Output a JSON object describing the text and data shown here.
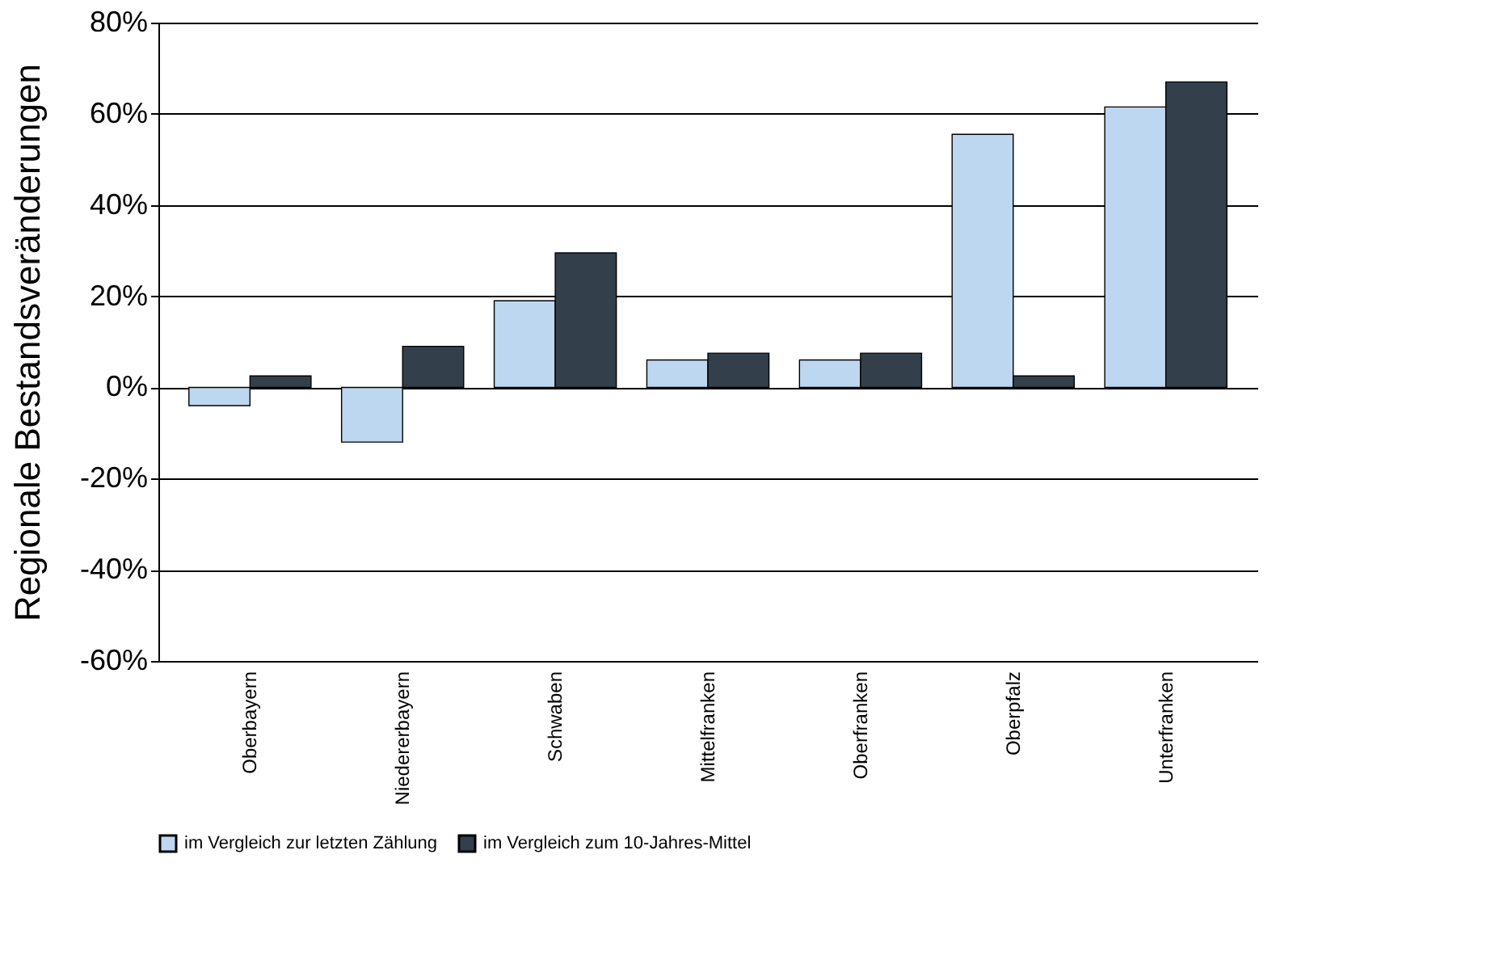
{
  "chart_data": {
    "type": "bar",
    "ylabel": "Regionale Bestandsveränderungen",
    "categories": [
      "Oberbayern",
      "Niedererbayern",
      "Schwaben",
      "Mittelfranken",
      "Oberfranken",
      "Oberpfalz",
      "Unterfranken"
    ],
    "series": [
      {
        "name": "im Vergleich zur letzten Zählung",
        "color": "#bdd7f0",
        "values": [
          -4,
          -12,
          19,
          6,
          6,
          55.5,
          61.5
        ]
      },
      {
        "name": "im Vergleich zum 10-Jahres-Mittel",
        "color": "#333f4b",
        "values": [
          2.5,
          9,
          29.5,
          7.5,
          7.5,
          2.5,
          67
        ]
      }
    ],
    "ylim": [
      -60,
      80
    ],
    "yticks": [
      {
        "value": -60,
        "label": "-60%"
      },
      {
        "value": -40,
        "label": "-40%"
      },
      {
        "value": -20,
        "label": "-20%"
      },
      {
        "value": 0,
        "label": "0%"
      },
      {
        "value": 20,
        "label": "20%"
      },
      {
        "value": 40,
        "label": "40%"
      },
      {
        "value": 60,
        "label": "60%"
      },
      {
        "value": 80,
        "label": "80%"
      }
    ],
    "grid": "y",
    "legend": "bottom"
  }
}
